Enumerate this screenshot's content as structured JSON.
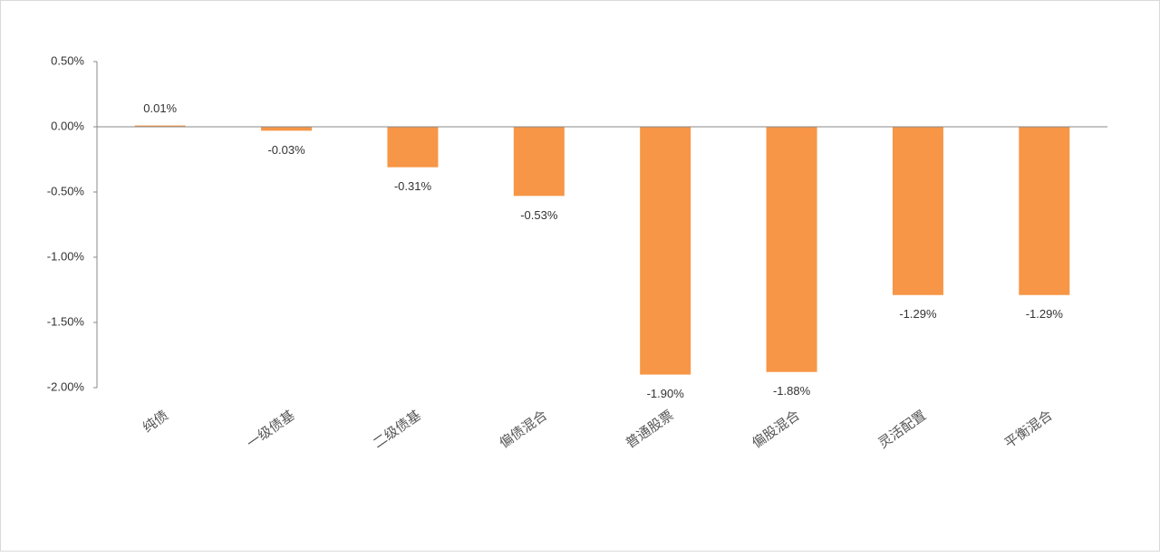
{
  "chart_data": {
    "type": "bar",
    "categories": [
      "纯债",
      "一级债基",
      "二级债基",
      "偏债混合",
      "普通股票",
      "偏股混合",
      "灵活配置",
      "平衡混合"
    ],
    "values": [
      0.01,
      -0.03,
      -0.31,
      -0.53,
      -1.9,
      -1.88,
      -1.29,
      -1.29
    ],
    "value_labels": [
      "0.01%",
      "-0.03%",
      "-0.31%",
      "-0.53%",
      "-1.90%",
      "-1.88%",
      "-1.29%",
      "-1.29%"
    ],
    "color": "#f79646",
    "ylim": [
      -2.0,
      0.5
    ],
    "yticks": [
      {
        "value": 0.5,
        "label": "0.50%"
      },
      {
        "value": 0.0,
        "label": "0.00%"
      },
      {
        "value": -0.5,
        "label": "-0.50%"
      },
      {
        "value": -1.0,
        "label": "-1.00%"
      },
      {
        "value": -1.5,
        "label": "-1.50%"
      },
      {
        "value": -2.0,
        "label": "-2.00%"
      }
    ],
    "grid": false
  }
}
